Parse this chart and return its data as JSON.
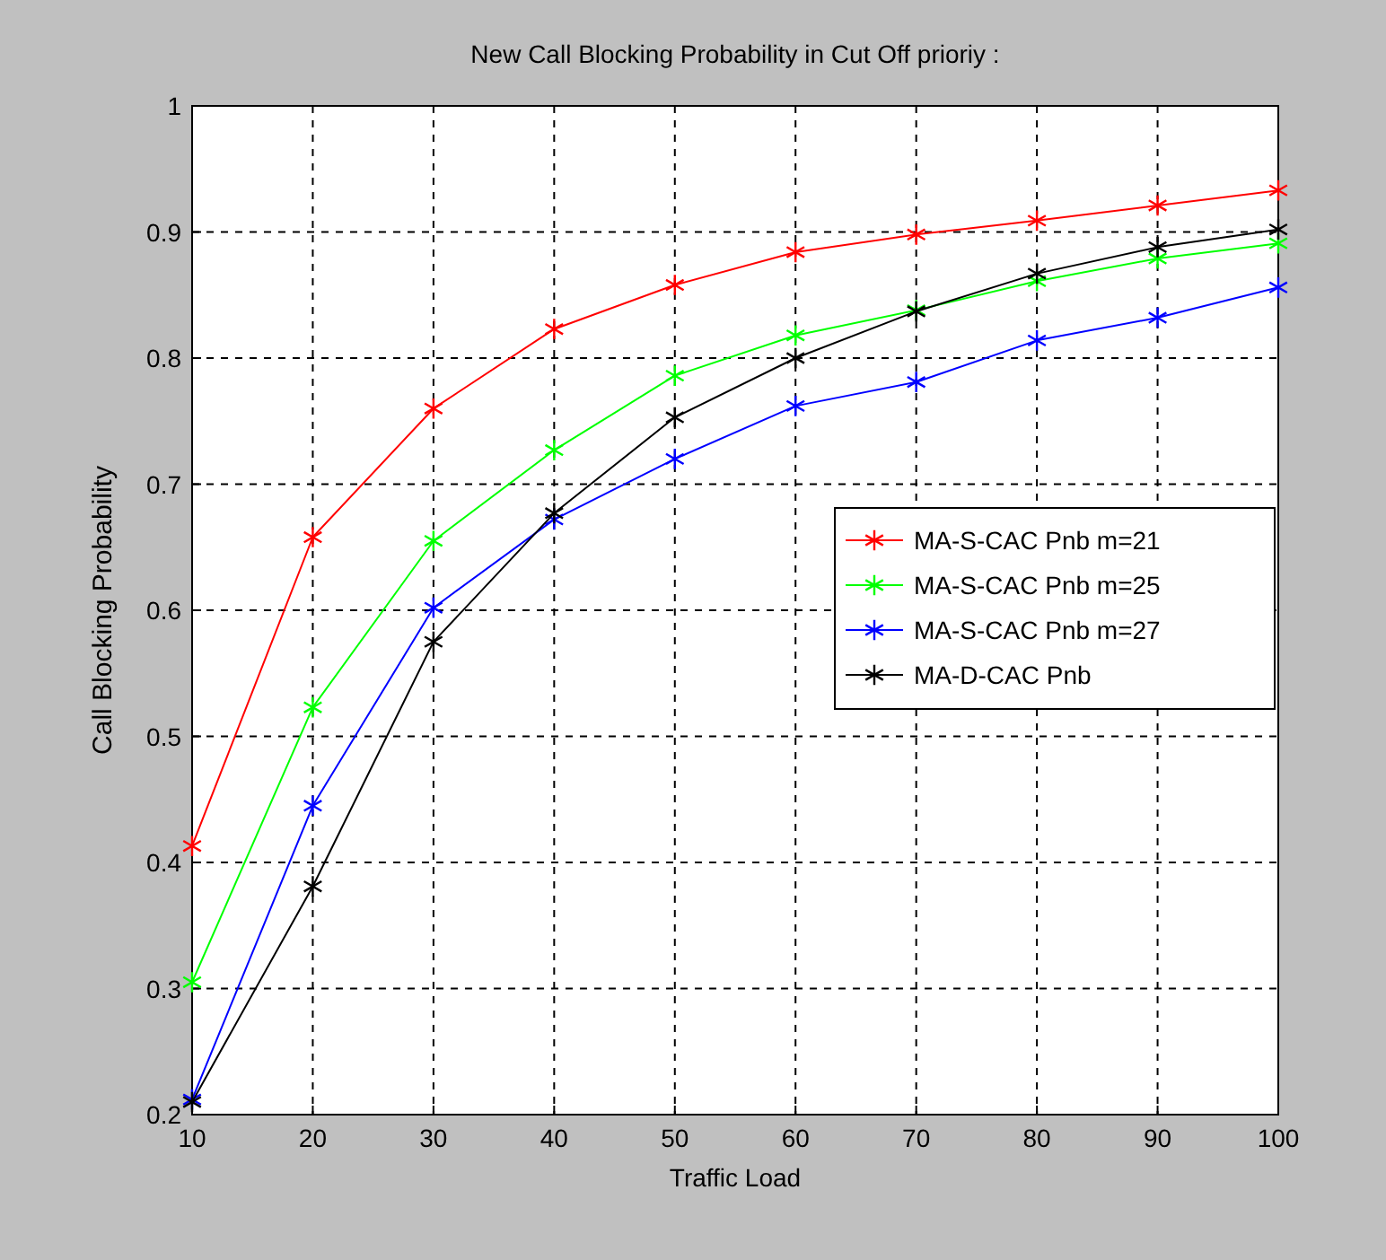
{
  "chart_data": {
    "type": "line",
    "title": "New Call Blocking Probability in Cut Off prioriy :",
    "xlabel": "Traffic Load",
    "ylabel": "Call Blocking Probability",
    "x": [
      10,
      20,
      30,
      40,
      50,
      60,
      70,
      80,
      90,
      100
    ],
    "series": [
      {
        "name": "MA-S-CAC Pnb m=21",
        "color": "#ff0000",
        "values": [
          0.413,
          0.658,
          0.76,
          0.823,
          0.858,
          0.884,
          0.898,
          0.909,
          0.921,
          0.933
        ]
      },
      {
        "name": "MA-S-CAC Pnb m=25",
        "color": "#00ff00",
        "values": [
          0.305,
          0.523,
          0.655,
          0.727,
          0.786,
          0.818,
          0.838,
          0.861,
          0.879,
          0.891
        ]
      },
      {
        "name": "MA-S-CAC Pnb m=27",
        "color": "#0000ff",
        "values": [
          0.212,
          0.445,
          0.602,
          0.672,
          0.72,
          0.762,
          0.781,
          0.814,
          0.832,
          0.856
        ]
      },
      {
        "name": "MA-D-CAC Pnb",
        "color": "#000000",
        "values": [
          0.21,
          0.381,
          0.575,
          0.677,
          0.753,
          0.8,
          0.837,
          0.867,
          0.888,
          0.902
        ]
      }
    ],
    "xlim": [
      10,
      100
    ],
    "xticks": [
      10,
      20,
      30,
      40,
      50,
      60,
      70,
      80,
      90,
      100
    ],
    "ylim": [
      0.2,
      1
    ],
    "yticks": [
      0.2,
      0.3,
      0.4,
      0.5,
      0.6,
      0.7,
      0.8,
      0.9,
      1
    ],
    "grid": true,
    "legend": "right",
    "marker": "cross",
    "line_style": "solid"
  }
}
